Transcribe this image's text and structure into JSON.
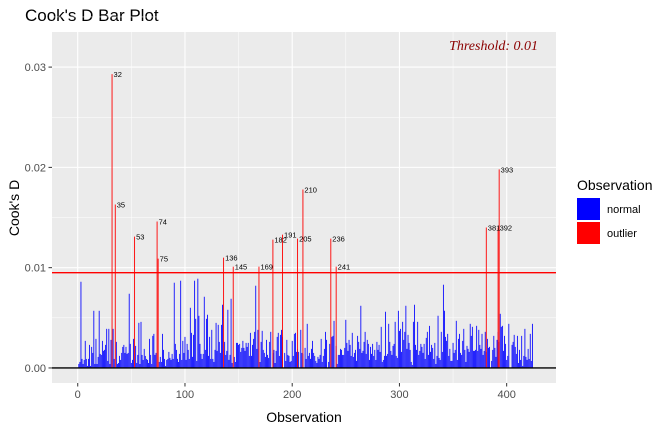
{
  "chart_data": {
    "type": "bar",
    "title": "Cook's D Bar Plot",
    "xlabel": "Observation",
    "ylabel": "Cook's D",
    "xlim": [
      -24,
      446
    ],
    "ylim": [
      -0.0015,
      0.0335
    ],
    "x_ticks": [
      0,
      100,
      200,
      300,
      400
    ],
    "y_ticks": [
      0.0,
      0.01,
      0.02,
      0.03
    ],
    "y_tick_labels": [
      "0.00",
      "0.01",
      "0.02",
      "0.03"
    ],
    "threshold": 0.0095,
    "threshold_label": "Threshold: 0.01",
    "colors": {
      "normal": "#0000ff",
      "outlier": "#ff0000",
      "threshold_line": "#ff0000",
      "annotation": "#8b0000"
    },
    "legend": {
      "title": "Observation",
      "position": "right",
      "entries": [
        "normal",
        "outlier"
      ]
    },
    "grid": true,
    "outliers": [
      {
        "x": 32,
        "y": 0.0293,
        "label": "32"
      },
      {
        "x": 35,
        "y": 0.0163,
        "label": "35"
      },
      {
        "x": 53,
        "y": 0.0131,
        "label": "53"
      },
      {
        "x": 74,
        "y": 0.0146,
        "label": "74"
      },
      {
        "x": 75,
        "y": 0.0109,
        "label": "75"
      },
      {
        "x": 136,
        "y": 0.011,
        "label": "136"
      },
      {
        "x": 145,
        "y": 0.0101,
        "label": "145"
      },
      {
        "x": 169,
        "y": 0.0101,
        "label": "169"
      },
      {
        "x": 182,
        "y": 0.0128,
        "label": "182"
      },
      {
        "x": 191,
        "y": 0.0133,
        "label": "191"
      },
      {
        "x": 205,
        "y": 0.0129,
        "label": "205"
      },
      {
        "x": 210,
        "y": 0.0178,
        "label": "210"
      },
      {
        "x": 236,
        "y": 0.0129,
        "label": "236"
      },
      {
        "x": 241,
        "y": 0.0101,
        "label": "241"
      },
      {
        "x": 381,
        "y": 0.014,
        "label": "381"
      },
      {
        "x": 392,
        "y": 0.014,
        "label": "392"
      },
      {
        "x": 393,
        "y": 0.0198,
        "label": "393"
      }
    ],
    "normal_series": {
      "x_start": 1,
      "x_step": 1,
      "values": [
        0.0004,
        0.0006,
        0.0086,
        0.0009,
        0.0004,
        0.0008,
        0.0027,
        0.0009,
        0.0002,
        0.0009,
        0.0023,
        0.0002,
        0.0021,
        0.0015,
        0.0057,
        0.0004,
        0.0029,
        0.0004,
        0.0011,
        0.0057,
        0.0014,
        0.0013,
        0.0027,
        0.0017,
        0.0018,
        0.0023,
        0.0039,
        0.0007,
        0.0039,
        0.0004,
        0.0028,
        0.0,
        0.0039,
        0.0009,
        0.0,
        0.0026,
        0.0004,
        0.0005,
        0.0012,
        0.0008,
        0.0015,
        0.0021,
        0.0023,
        0.0015,
        0.0021,
        0.0014,
        0.0015,
        0.0074,
        0.0024,
        0.0005,
        0.0008,
        0.0029,
        0.0,
        0.0022,
        0.0005,
        0.0013,
        0.0045,
        0.0004,
        0.0046,
        0.0013,
        0.0008,
        0.0019,
        0.0012,
        0.0009,
        0.0008,
        0.0005,
        0.0029,
        0.0013,
        0.0004,
        0.0032,
        0.0034,
        0.0013,
        0.0015,
        0.0,
        0.0,
        0.0006,
        0.0011,
        0.0006,
        0.0034,
        0.0018,
        0.0009,
        0.0002,
        0.0008,
        0.0009,
        0.0016,
        0.001,
        0.0008,
        0.0014,
        0.0009,
        0.0085,
        0.0024,
        0.0018,
        0.0009,
        0.0006,
        0.0014,
        0.0087,
        0.0008,
        0.0027,
        0.0015,
        0.0031,
        0.0008,
        0.0024,
        0.0018,
        0.0009,
        0.006,
        0.0035,
        0.0011,
        0.0033,
        0.0087,
        0.0049,
        0.0007,
        0.0089,
        0.0052,
        0.0024,
        0.0014,
        0.0009,
        0.0014,
        0.0071,
        0.0018,
        0.0049,
        0.0053,
        0.0012,
        0.0031,
        0.0009,
        0.0038,
        0.0009,
        0.0006,
        0.0018,
        0.0045,
        0.0017,
        0.0043,
        0.0026,
        0.0015,
        0.0043,
        0.0063,
        0.0,
        0.0026,
        0.0013,
        0.0017,
        0.0058,
        0.0008,
        0.0013,
        0.0069,
        0.0005,
        0.0,
        0.0011,
        0.0006,
        0.0025,
        0.0025,
        0.0023,
        0.0024,
        0.0016,
        0.002,
        0.0027,
        0.002,
        0.0017,
        0.0025,
        0.0021,
        0.0025,
        0.0012,
        0.0035,
        0.0012,
        0.0023,
        0.0029,
        0.0036,
        0.0082,
        0.0019,
        0.0038,
        0.0,
        0.0006,
        0.0026,
        0.0037,
        0.0018,
        0.0015,
        0.0011,
        0.0028,
        0.0013,
        0.001,
        0.0026,
        0.0036,
        0.0,
        0.0015,
        0.0018,
        0.0005,
        0.0017,
        0.0031,
        0.0035,
        0.0012,
        0.0033,
        0.0038,
        0.0031,
        0.0,
        0.0015,
        0.0007,
        0.0028,
        0.0013,
        0.0012,
        0.0006,
        0.0007,
        0.0027,
        0.0012,
        0.0034,
        0.0035,
        0.0016,
        0.0019,
        0.0016,
        0.0,
        0.0038,
        0.0015,
        0.0014,
        0.0,
        0.002,
        0.0009,
        0.0044,
        0.0012,
        0.0015,
        0.0009,
        0.0019,
        0.0027,
        0.0015,
        0.0012,
        0.0007,
        0.0005,
        0.0011,
        0.0009,
        0.0013,
        0.0029,
        0.0006,
        0.0012,
        0.0019,
        0.0036,
        0.0028,
        0.0,
        0.0006,
        0.0024,
        0.0,
        0.0031,
        0.0032,
        0.0047,
        0.0,
        0.0022,
        0.0004,
        0.0013,
        0.0013,
        0.0019,
        0.0018,
        0.0013,
        0.0013,
        0.002,
        0.0048,
        0.0025,
        0.0017,
        0.0028,
        0.0023,
        0.0012,
        0.0035,
        0.0011,
        0.0015,
        0.0018,
        0.0007,
        0.0032,
        0.0026,
        0.0019,
        0.0062,
        0.0015,
        0.0017,
        0.0026,
        0.0036,
        0.0014,
        0.0028,
        0.0024,
        0.0008,
        0.0021,
        0.0014,
        0.0024,
        0.0012,
        0.0018,
        0.0008,
        0.0026,
        0.0018,
        0.0023,
        0.0016,
        0.0041,
        0.0006,
        0.0008,
        0.0012,
        0.0056,
        0.0012,
        0.0014,
        0.0044,
        0.0026,
        0.0017,
        0.0013,
        0.0022,
        0.0024,
        0.0046,
        0.0012,
        0.001,
        0.0057,
        0.0037,
        0.0039,
        0.0016,
        0.0046,
        0.0028,
        0.0036,
        0.0062,
        0.0019,
        0.0033,
        0.0025,
        0.0018,
        0.0006,
        0.0003,
        0.0046,
        0.0063,
        0.0023,
        0.0018,
        0.0046,
        0.0013,
        0.0017,
        0.0024,
        0.0021,
        0.0015,
        0.0024,
        0.0009,
        0.003,
        0.0036,
        0.0013,
        0.0042,
        0.0016,
        0.0023,
        0.002,
        0.0009,
        0.0025,
        0.0004,
        0.0012,
        0.0052,
        0.001,
        0.0008,
        0.0036,
        0.0016,
        0.0083,
        0.0057,
        0.0031,
        0.0027,
        0.0034,
        0.0012,
        0.0019,
        0.0007,
        0.0007,
        0.0025,
        0.0015,
        0.0018,
        0.0047,
        0.0008,
        0.0029,
        0.0034,
        0.0015,
        0.0013,
        0.0027,
        0.0039,
        0.0018,
        0.0006,
        0.0022,
        0.0019,
        0.0016,
        0.0044,
        0.0032,
        0.0041,
        0.0017,
        0.0017,
        0.0018,
        0.0042,
        0.0017,
        0.0038,
        0.0023,
        0.0019,
        0.0034,
        0.0013,
        0.0017,
        0.0036,
        0.0016,
        0.0029,
        0.002,
        0.0021,
        0.0,
        0.0007,
        0.0018,
        0.0032,
        0.002,
        0.0011,
        0.0028,
        0.0036,
        0.0026,
        0.0054,
        0.0041,
        0.0042,
        0.0017,
        0.0032,
        0.0024,
        0.0008,
        0.0012,
        0.0044,
        0.0,
        0.0,
        0.0023,
        0.0026,
        0.0033,
        0.0021,
        0.0014,
        0.0032,
        0.0005,
        0.0018,
        0.0008,
        0.0032,
        0.0002,
        0.0012,
        0.0039,
        0.0011,
        0.0008,
        0.0019,
        0.0009,
        0.0034,
        0.0007,
        0.0044
      ]
    }
  }
}
